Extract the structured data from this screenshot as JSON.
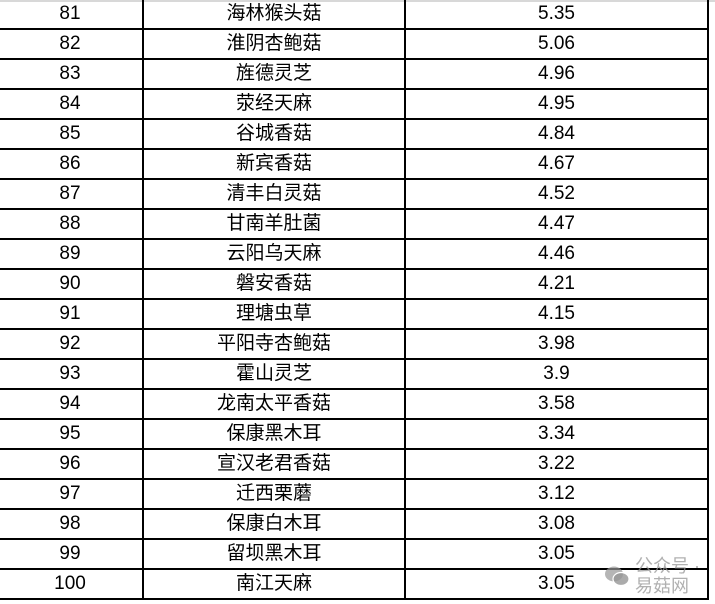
{
  "table": {
    "rows": [
      {
        "rank": "81",
        "name": "海林猴头菇",
        "value": "5.35"
      },
      {
        "rank": "82",
        "name": "淮阴杏鲍菇",
        "value": "5.06"
      },
      {
        "rank": "83",
        "name": "旌德灵芝",
        "value": "4.96"
      },
      {
        "rank": "84",
        "name": "荥经天麻",
        "value": "4.95"
      },
      {
        "rank": "85",
        "name": "谷城香菇",
        "value": "4.84"
      },
      {
        "rank": "86",
        "name": "新宾香菇",
        "value": "4.67"
      },
      {
        "rank": "87",
        "name": "清丰白灵菇",
        "value": "4.52"
      },
      {
        "rank": "88",
        "name": "甘南羊肚菌",
        "value": "4.47"
      },
      {
        "rank": "89",
        "name": "云阳乌天麻",
        "value": "4.46"
      },
      {
        "rank": "90",
        "name": "磐安香菇",
        "value": "4.21"
      },
      {
        "rank": "91",
        "name": "理塘虫草",
        "value": "4.15"
      },
      {
        "rank": "92",
        "name": "平阳寺杏鲍菇",
        "value": "3.98"
      },
      {
        "rank": "93",
        "name": "霍山灵芝",
        "value": "3.9"
      },
      {
        "rank": "94",
        "name": "龙南太平香菇",
        "value": "3.58"
      },
      {
        "rank": "95",
        "name": "保康黑木耳",
        "value": "3.34"
      },
      {
        "rank": "96",
        "name": "宣汉老君香菇",
        "value": "3.22"
      },
      {
        "rank": "97",
        "name": "迁西栗蘑",
        "value": "3.12"
      },
      {
        "rank": "98",
        "name": "保康白木耳",
        "value": "3.08"
      },
      {
        "rank": "99",
        "name": "留坝黑木耳",
        "value": "3.05"
      },
      {
        "rank": "100",
        "name": "南江天麻",
        "value": "3.05"
      }
    ]
  },
  "watermark": {
    "text": "公众号 · 易菇网",
    "icon": "wechat-icon",
    "color": "#969696"
  }
}
